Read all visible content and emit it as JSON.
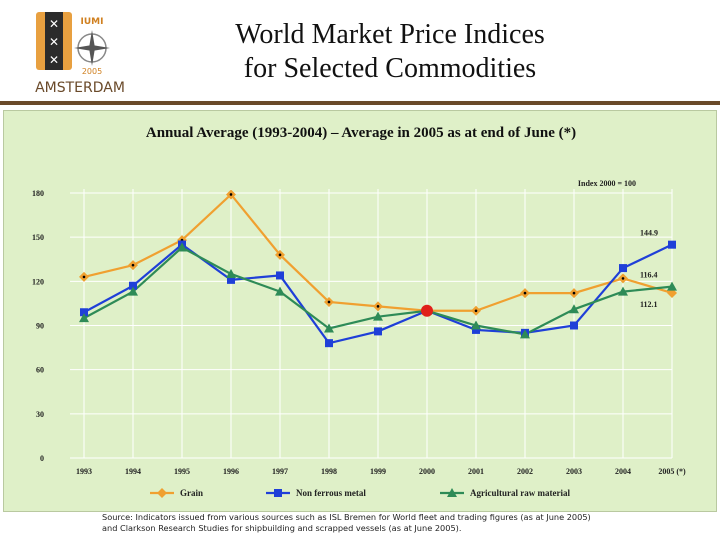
{
  "header": {
    "title_line1": "World Market Price Indices",
    "title_line2": "for Selected Commodities",
    "logo": {
      "badge_line1": "IUMI",
      "badge_line2": "2005",
      "city": "AMSTERDAM",
      "icon": "iumi-amsterdam-logo"
    }
  },
  "colors": {
    "grain": "#f0a030",
    "non_ferrous": "#1f3fd8",
    "agri": "#2e8b57",
    "highlight": "#e0201a",
    "panel": "#dff0c8",
    "grid": "#ffffff"
  },
  "chart_data": {
    "type": "line",
    "title": "Annual Average (1993-2004) – Average in 2005 as at end of June (*)",
    "index_note": "Index 2000 = 100",
    "categories": [
      "1993",
      "1994",
      "1995",
      "1996",
      "1997",
      "1998",
      "1999",
      "2000",
      "2001",
      "2002",
      "2003",
      "2004",
      "2005 (*)"
    ],
    "yticks": [
      "0",
      "30",
      "60",
      "90",
      "120",
      "150",
      "180"
    ],
    "ylim": [
      0,
      180
    ],
    "grid": true,
    "legend_position": "bottom",
    "series": [
      {
        "name": "Grain",
        "values": [
          123,
          131,
          148,
          179,
          138,
          106,
          103,
          100,
          100,
          112,
          112,
          122,
          112.1
        ]
      },
      {
        "name": "Non ferrous metal",
        "values": [
          99,
          117,
          145,
          121,
          124,
          78,
          86,
          100,
          87,
          85,
          90,
          129,
          144.9
        ]
      },
      {
        "name": "Agricultural raw material",
        "values": [
          95,
          113,
          143,
          125,
          113,
          88,
          96,
          100,
          90,
          84,
          101,
          113,
          116.4
        ]
      }
    ],
    "end_labels": [
      "144.9",
      "116.4",
      "112.1"
    ]
  },
  "source": {
    "line1": "Source: Indicators issued from various sources such as ISL Bremen for World fleet and trading figures (as at June 2005)",
    "line2": "and Clarkson Research Studies for shipbuilding and scrapped vessels (as at June 2005)."
  }
}
